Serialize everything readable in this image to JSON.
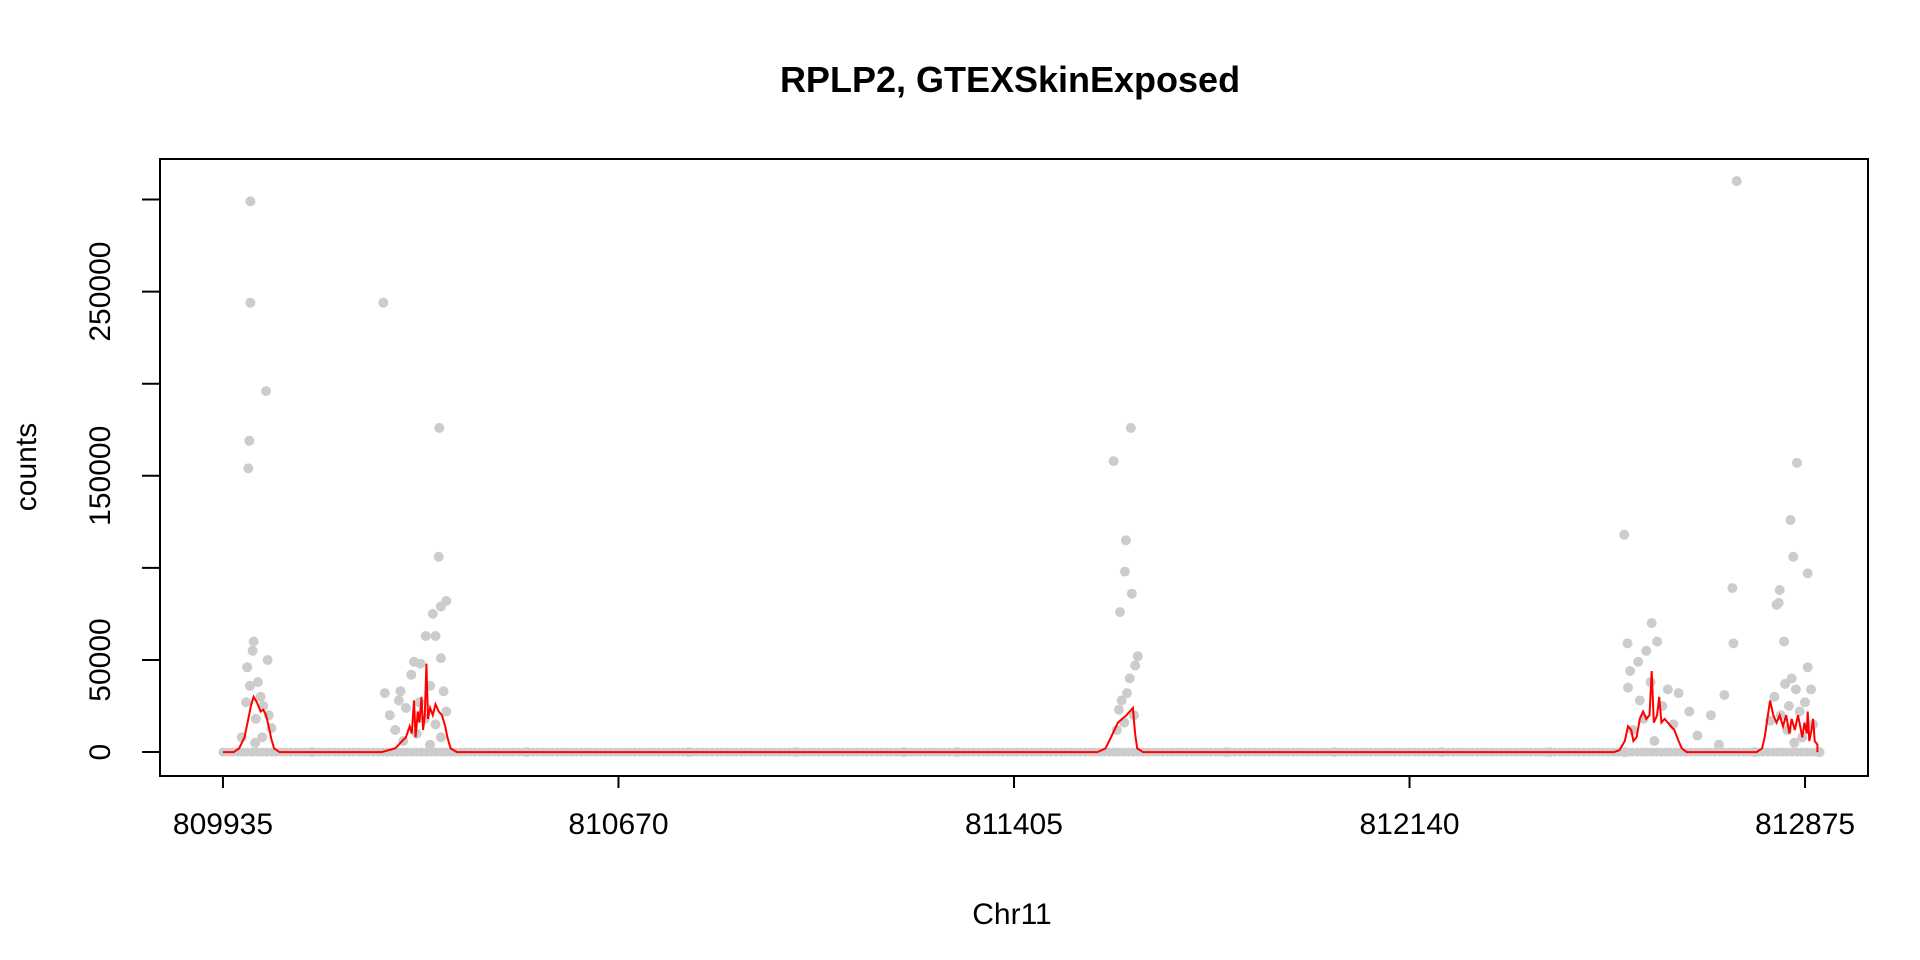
{
  "chart_data": {
    "type": "scatter",
    "title": "RPLP2, GTEXSkinExposed",
    "xlabel": "Chr11",
    "ylabel": "counts",
    "xlim": [
      809818,
      812992
    ],
    "ylim": [
      -13000,
      322000
    ],
    "x_ticks": [
      809935,
      810670,
      811405,
      812140,
      812875
    ],
    "x_tick_labels": [
      "809935",
      "810670",
      "811405",
      "812140",
      "812875"
    ],
    "y_ticks": [
      0,
      50000,
      100000,
      150000,
      200000,
      250000,
      300000
    ],
    "y_tick_labels": [
      "0",
      "50000",
      "",
      "150000",
      "",
      "250000",
      ""
    ],
    "grid": false,
    "colors": {
      "points": "#cccccc",
      "smooth_line": "#ff0000",
      "frame": "#000000"
    },
    "series": [
      {
        "kind": "points",
        "points": [
          [
            809986,
            299000
          ],
          [
            809986,
            244000
          ],
          [
            809984,
            169000
          ],
          [
            809982,
            154000
          ],
          [
            810015,
            196000
          ],
          [
            809992,
            60000
          ],
          [
            809990,
            55000
          ],
          [
            809980,
            46000
          ],
          [
            810000,
            38000
          ],
          [
            809985,
            36000
          ],
          [
            810005,
            30000
          ],
          [
            810018,
            50000
          ],
          [
            809978,
            27000
          ],
          [
            810010,
            25000
          ],
          [
            810020,
            20000
          ],
          [
            809996,
            18000
          ],
          [
            810025,
            13000
          ],
          [
            809970,
            8000
          ],
          [
            810008,
            8000
          ],
          [
            809995,
            5000
          ],
          [
            810233,
            244000
          ],
          [
            810337,
            176000
          ],
          [
            810336,
            106000
          ],
          [
            810350,
            82000
          ],
          [
            810340,
            79000
          ],
          [
            810325,
            75000
          ],
          [
            810330,
            63000
          ],
          [
            810312,
            63000
          ],
          [
            810340,
            51000
          ],
          [
            810290,
            49000
          ],
          [
            810302,
            48000
          ],
          [
            810285,
            42000
          ],
          [
            810265,
            33000
          ],
          [
            810236,
            32000
          ],
          [
            810320,
            36000
          ],
          [
            810345,
            33000
          ],
          [
            810262,
            28000
          ],
          [
            810300,
            27000
          ],
          [
            810275,
            24000
          ],
          [
            810350,
            22000
          ],
          [
            810245,
            20000
          ],
          [
            810310,
            18000
          ],
          [
            810330,
            15000
          ],
          [
            810255,
            12000
          ],
          [
            810295,
            10000
          ],
          [
            810340,
            8000
          ],
          [
            810270,
            6000
          ],
          [
            810320,
            4000
          ],
          [
            811590,
            158000
          ],
          [
            811622,
            176000
          ],
          [
            811613,
            115000
          ],
          [
            811611,
            98000
          ],
          [
            811624,
            86000
          ],
          [
            811602,
            76000
          ],
          [
            811635,
            52000
          ],
          [
            811630,
            47000
          ],
          [
            811620,
            40000
          ],
          [
            811615,
            32000
          ],
          [
            811605,
            28000
          ],
          [
            811600,
            23000
          ],
          [
            811628,
            20000
          ],
          [
            811610,
            16000
          ],
          [
            811596,
            12000
          ],
          [
            812902,
            0
          ],
          [
            810100,
            0
          ],
          [
            810500,
            0
          ],
          [
            810800,
            0
          ],
          [
            811000,
            0
          ],
          [
            811200,
            0
          ],
          [
            811300,
            0
          ],
          [
            811800,
            0
          ],
          [
            812000,
            0
          ],
          [
            812200,
            0
          ],
          [
            812400,
            0
          ],
          [
            812540,
            0
          ],
          [
            812780,
            0
          ],
          [
            812748,
            310000
          ],
          [
            812539,
            118000
          ],
          [
            812740,
            89000
          ],
          [
            812590,
            70000
          ],
          [
            812545,
            59000
          ],
          [
            812600,
            60000
          ],
          [
            812742,
            59000
          ],
          [
            812580,
            55000
          ],
          [
            812565,
            49000
          ],
          [
            812550,
            44000
          ],
          [
            812546,
            35000
          ],
          [
            812588,
            38000
          ],
          [
            812620,
            34000
          ],
          [
            812640,
            32000
          ],
          [
            812725,
            31000
          ],
          [
            812568,
            28000
          ],
          [
            812610,
            25000
          ],
          [
            812660,
            22000
          ],
          [
            812700,
            20000
          ],
          [
            812575,
            18000
          ],
          [
            812630,
            15000
          ],
          [
            812555,
            12000
          ],
          [
            812675,
            9000
          ],
          [
            812595,
            6000
          ],
          [
            812715,
            4000
          ],
          [
            812860,
            157000
          ],
          [
            812848,
            126000
          ],
          [
            812853,
            106000
          ],
          [
            812880,
            97000
          ],
          [
            812828,
            88000
          ],
          [
            812822,
            80000
          ],
          [
            812826,
            81000
          ],
          [
            812836,
            60000
          ],
          [
            812880,
            46000
          ],
          [
            812850,
            40000
          ],
          [
            812838,
            37000
          ],
          [
            812858,
            34000
          ],
          [
            812886,
            34000
          ],
          [
            812818,
            30000
          ],
          [
            812875,
            27000
          ],
          [
            812845,
            25000
          ],
          [
            812865,
            22000
          ],
          [
            812830,
            20000
          ],
          [
            812810,
            17000
          ],
          [
            812890,
            15000
          ],
          [
            812842,
            12000
          ],
          [
            812870,
            8000
          ],
          [
            812855,
            5000
          ]
        ]
      },
      {
        "kind": "line",
        "points": [
          [
            809935,
            0
          ],
          [
            809955,
            0
          ],
          [
            809965,
            2000
          ],
          [
            809975,
            8000
          ],
          [
            809982,
            18000
          ],
          [
            809987,
            25000
          ],
          [
            809992,
            30000
          ],
          [
            809998,
            27000
          ],
          [
            810005,
            22000
          ],
          [
            810010,
            23000
          ],
          [
            810015,
            20000
          ],
          [
            810020,
            14000
          ],
          [
            810025,
            7000
          ],
          [
            810030,
            2000
          ],
          [
            810040,
            0
          ],
          [
            810230,
            0
          ],
          [
            810255,
            2000
          ],
          [
            810268,
            6000
          ],
          [
            810275,
            8000
          ],
          [
            810282,
            14000
          ],
          [
            810286,
            10000
          ],
          [
            810290,
            28000
          ],
          [
            810293,
            8000
          ],
          [
            810297,
            22000
          ],
          [
            810300,
            16000
          ],
          [
            810304,
            30000
          ],
          [
            810307,
            12000
          ],
          [
            810310,
            20000
          ],
          [
            810313,
            48000
          ],
          [
            810316,
            18000
          ],
          [
            810320,
            24000
          ],
          [
            810325,
            20000
          ],
          [
            810330,
            26000
          ],
          [
            810336,
            22000
          ],
          [
            810342,
            20000
          ],
          [
            810348,
            14000
          ],
          [
            810352,
            8000
          ],
          [
            810358,
            2000
          ],
          [
            810370,
            0
          ],
          [
            811560,
            0
          ],
          [
            811575,
            2000
          ],
          [
            811582,
            6000
          ],
          [
            811590,
            11000
          ],
          [
            811598,
            16000
          ],
          [
            811606,
            18000
          ],
          [
            811614,
            20000
          ],
          [
            811620,
            22000
          ],
          [
            811626,
            24000
          ],
          [
            811630,
            10000
          ],
          [
            811634,
            2000
          ],
          [
            811645,
            0
          ],
          [
            812520,
            0
          ],
          [
            812530,
            1000
          ],
          [
            812540,
            6000
          ],
          [
            812546,
            14000
          ],
          [
            812552,
            12000
          ],
          [
            812556,
            6000
          ],
          [
            812562,
            8000
          ],
          [
            812568,
            18000
          ],
          [
            812574,
            22000
          ],
          [
            812580,
            18000
          ],
          [
            812586,
            20000
          ],
          [
            812590,
            44000
          ],
          [
            812594,
            16000
          ],
          [
            812600,
            20000
          ],
          [
            812604,
            30000
          ],
          [
            812608,
            16000
          ],
          [
            812614,
            18000
          ],
          [
            812620,
            16000
          ],
          [
            812626,
            14000
          ],
          [
            812632,
            12000
          ],
          [
            812640,
            6000
          ],
          [
            812646,
            2000
          ],
          [
            812655,
            0
          ],
          [
            812785,
            0
          ],
          [
            812795,
            2000
          ],
          [
            812800,
            8000
          ],
          [
            812806,
            20000
          ],
          [
            812810,
            28000
          ],
          [
            812816,
            20000
          ],
          [
            812822,
            16000
          ],
          [
            812828,
            20000
          ],
          [
            812834,
            14000
          ],
          [
            812840,
            20000
          ],
          [
            812846,
            10000
          ],
          [
            812850,
            18000
          ],
          [
            812856,
            12000
          ],
          [
            812862,
            20000
          ],
          [
            812866,
            14000
          ],
          [
            812870,
            8000
          ],
          [
            812874,
            16000
          ],
          [
            812878,
            10000
          ],
          [
            812880,
            22000
          ],
          [
            812883,
            6000
          ],
          [
            812887,
            12000
          ],
          [
            812890,
            18000
          ],
          [
            812893,
            6000
          ],
          [
            812898,
            4000
          ]
        ]
      }
    ]
  }
}
